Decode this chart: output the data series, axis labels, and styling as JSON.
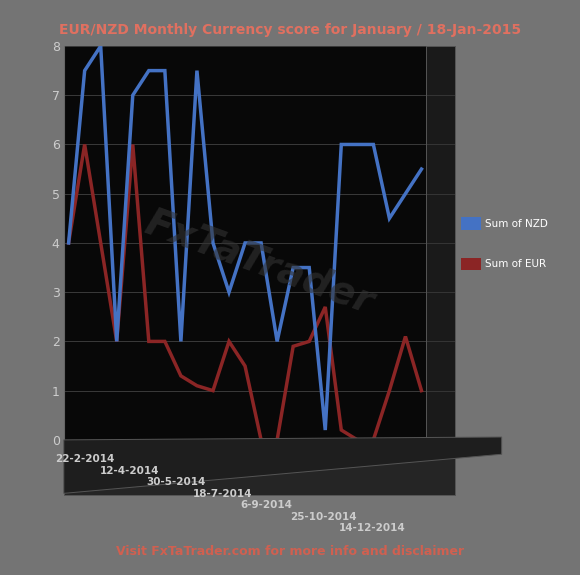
{
  "title": "EUR/NZD Monthly Currency score for January / 18-Jan-2015",
  "subtitle": "Visit FxTaTrader.com for more info and disclaimer",
  "x_labels": [
    "22-2-2014",
    "12-4-2014",
    "30-5-2014",
    "18-7-2014",
    "6-9-2014",
    "25-10-2014",
    "14-12-2014"
  ],
  "nzd_values": [
    4,
    7.5,
    8,
    2,
    7,
    7.5,
    7.5,
    2,
    7.5,
    4.0,
    3,
    4,
    4,
    2,
    3.5,
    3.5,
    0.2,
    6,
    6,
    6,
    4.5,
    5,
    5.5
  ],
  "eur_values": [
    4,
    6,
    4,
    2,
    6,
    2,
    2,
    1.3,
    1.1,
    1,
    2,
    1.5,
    0,
    0,
    1.9,
    2,
    2.7,
    0.2,
    0,
    0,
    1,
    2.1,
    1
  ],
  "nzd_color": "#4472C4",
  "eur_color": "#8B2525",
  "bg_color": "#080808",
  "outer_bg": "#747474",
  "title_color": "#E07060",
  "subtitle_color": "#D06050",
  "axis_label_color": "#CCCCCC",
  "grid_color": "#3a3a3a",
  "wall_color": "#1a1a1a",
  "floor_color": "#252525",
  "watermark_color": "#333333",
  "watermark": "FxTaTrader",
  "ylim": [
    0,
    8
  ],
  "yticks": [
    0,
    1,
    2,
    3,
    4,
    5,
    6,
    7,
    8
  ],
  "legend_nzd": "Sum of NZD",
  "legend_eur": "Sum of EUR",
  "legend_nzd_color": "#4472C4",
  "legend_eur_color": "#8B2525"
}
